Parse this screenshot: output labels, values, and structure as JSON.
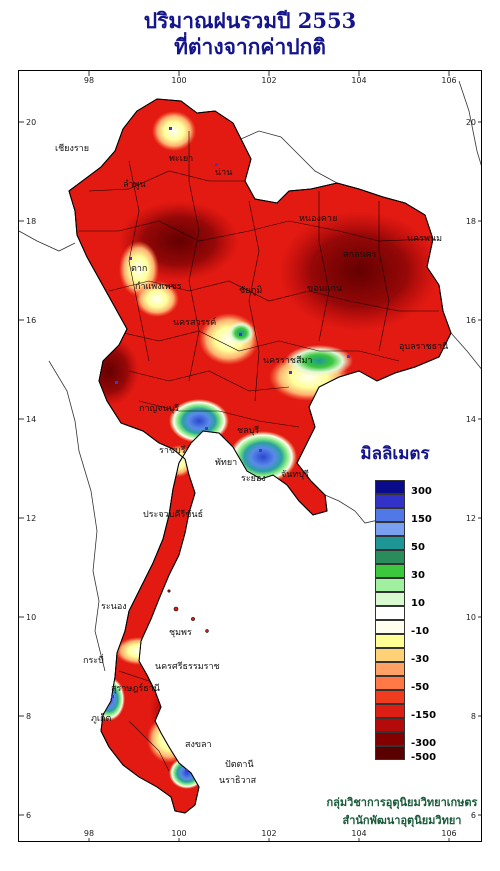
{
  "title": {
    "line1": "ปริมาณฝนรวมปี 2553",
    "line2": "ที่ต่างจากค่าปกติ"
  },
  "axes": {
    "longitude_labels": [
      "98",
      "100",
      "102",
      "104",
      "106"
    ],
    "latitude_labels": [
      "20",
      "18",
      "16",
      "14",
      "12",
      "10",
      "8",
      "6"
    ]
  },
  "legend": {
    "title": "มิลลิเมตร",
    "labels": [
      "300",
      "150",
      "50",
      "30",
      "10",
      "-10",
      "-30",
      "-50",
      "-150",
      "-300",
      "-500"
    ],
    "colors": [
      "#0a0a8c",
      "#3232c8",
      "#5078e6",
      "#7aa0f0",
      "#1e9696",
      "#2a8c5a",
      "#3cc83c",
      "#a0f0a0",
      "#d8f8d0",
      "#ffffff",
      "#fffff0",
      "#ffff96",
      "#ffd278",
      "#ffa064",
      "#ff7846",
      "#f03c1e",
      "#dc1e14",
      "#b40a0a",
      "#820000",
      "#5a0000"
    ]
  },
  "map": {
    "provinces": [
      "เชียงราย",
      "พะเยา",
      "ลำพูน",
      "น่าน",
      "ตาก",
      "กำแพงเพชร",
      "หนองคาย",
      "นครพนม",
      "สกลนคร",
      "นครสวรรค์",
      "นครราชสีมา",
      "ขอนแก่น",
      "อุบลราชธานี",
      "ชัยภูมิ",
      "กาญจนบุรี",
      "ราชบุรี",
      "ชลบุรี",
      "พัทยา",
      "ระยอง",
      "จันทบุรี",
      "ประจวบคีรีขันธ์",
      "ระนอง",
      "ชุมพร",
      "นครศรีธรรมราช",
      "ภูเก็ต",
      "สงขลา",
      "ปัตตานี",
      "นราธิวาส",
      "สุราษฎร์ธานี",
      "กระบี่"
    ]
  },
  "credit": {
    "line1": "กลุ่มวิชาการอุตุนิยมวิทยาเกษตร",
    "line2": "สำนักพัฒนาอุตุนิยมวิทยา"
  }
}
